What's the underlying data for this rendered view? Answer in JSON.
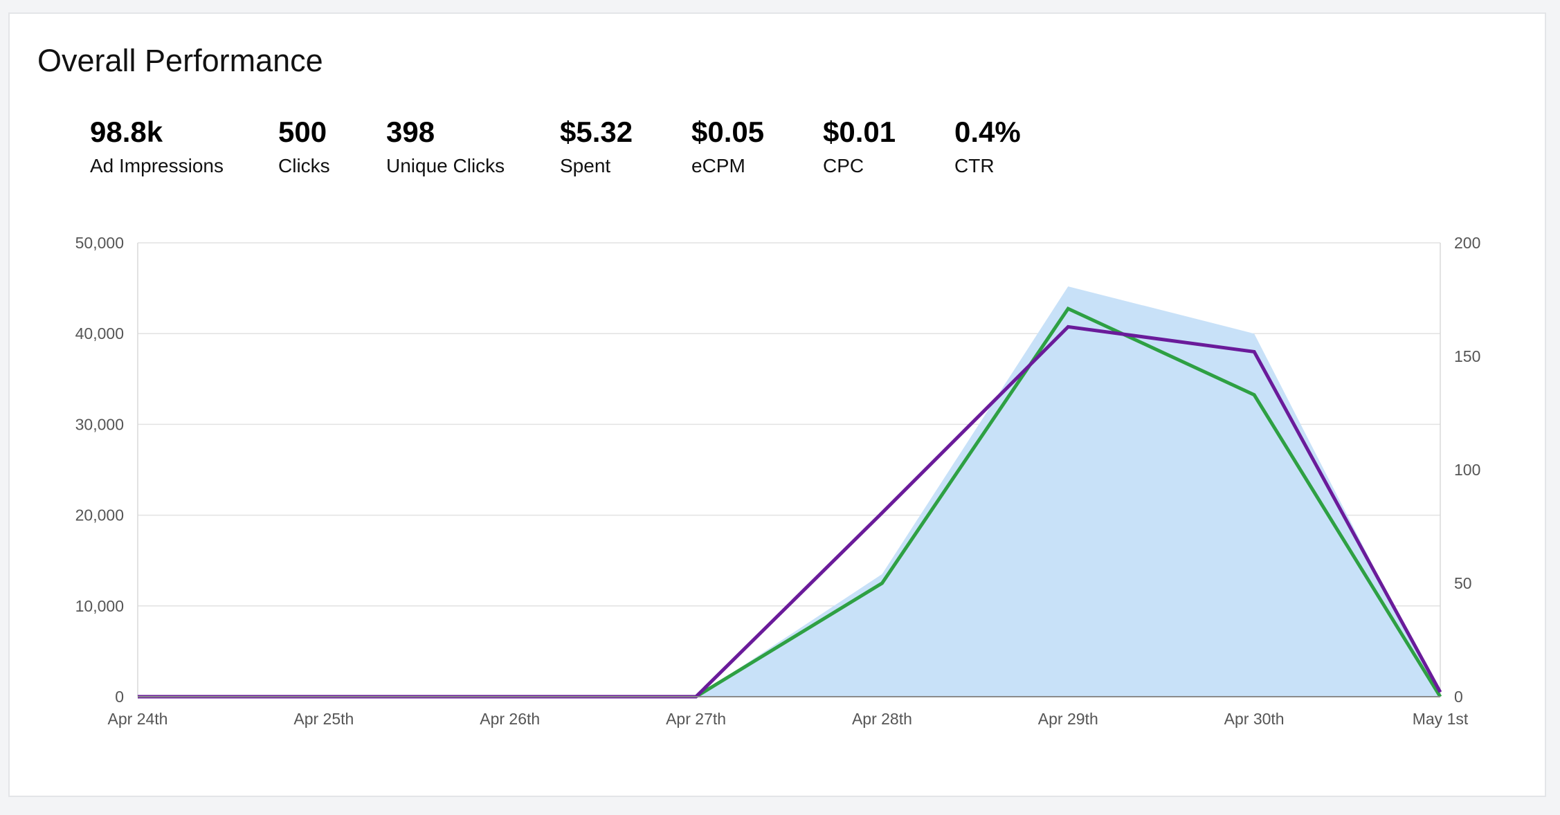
{
  "title": "Overall Performance",
  "metrics": [
    {
      "value": "98.8k",
      "label": "Ad Impressions",
      "color": "#6aa0d6"
    },
    {
      "value": "500",
      "label": "Clicks",
      "color": ""
    },
    {
      "value": "398",
      "label": "Unique Clicks",
      "color": "#7b1f8c"
    },
    {
      "value": "$5.32",
      "label": "Spent",
      "color": "#2ea043"
    },
    {
      "value": "$0.05",
      "label": "eCPM",
      "color": ""
    },
    {
      "value": "$0.01",
      "label": "CPC",
      "color": ""
    },
    {
      "value": "0.4%",
      "label": "CTR",
      "color": ""
    }
  ],
  "chart_data": {
    "type": "line",
    "categories": [
      "Apr 24th",
      "Apr 25th",
      "Apr 26th",
      "Apr 27th",
      "Apr 28th",
      "Apr 29th",
      "Apr 30th",
      "May 1st"
    ],
    "y_left": {
      "ticks": [
        "0",
        "10,000",
        "20,000",
        "30,000",
        "40,000",
        "50,000"
      ],
      "range": [
        0,
        50000
      ]
    },
    "y_right": {
      "ticks": [
        "0",
        "50",
        "100",
        "150",
        "200"
      ],
      "range": [
        0,
        200
      ]
    },
    "grid": true,
    "series": [
      {
        "type": "area",
        "axis": "left",
        "color": "#c8e1f8",
        "values": [
          0,
          0,
          0,
          0,
          13500,
          45200,
          40000,
          0
        ]
      },
      {
        "type": "line",
        "axis": "right",
        "color": "#2ea043",
        "values": [
          0,
          0,
          0,
          0,
          50,
          171,
          133,
          0
        ]
      },
      {
        "type": "line",
        "axis": "right",
        "color": "#6a1b9a",
        "values": [
          0,
          0,
          0,
          0,
          81,
          163,
          152,
          2
        ]
      }
    ]
  }
}
